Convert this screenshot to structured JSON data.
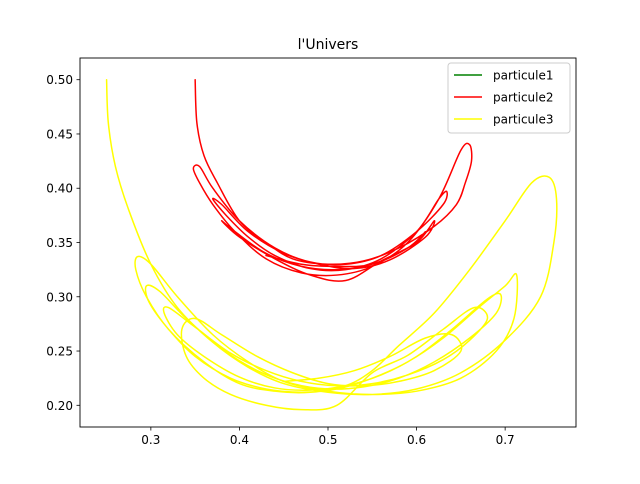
{
  "chart_data": {
    "type": "line",
    "title": "l'Univers",
    "xlabel": "",
    "ylabel": "",
    "xlim": [
      0.22,
      0.78
    ],
    "ylim": [
      0.18,
      0.52
    ],
    "xticks": [
      0.3,
      0.4,
      0.5,
      0.6,
      0.7
    ],
    "xtick_labels": [
      "0.3",
      "0.4",
      "0.5",
      "0.6",
      "0.7"
    ],
    "yticks": [
      0.2,
      0.25,
      0.3,
      0.35,
      0.4,
      0.45,
      0.5
    ],
    "ytick_labels": [
      "0.20",
      "0.25",
      "0.30",
      "0.35",
      "0.40",
      "0.45",
      "0.50"
    ],
    "grid": false,
    "legend_position": "top-right",
    "series": [
      {
        "name": "particule1",
        "color": "#008000",
        "x": [],
        "y": []
      },
      {
        "name": "particule2",
        "color": "#ff0000",
        "x": [
          0.35,
          0.352,
          0.36,
          0.375,
          0.4,
          0.43,
          0.46,
          0.5,
          0.54,
          0.58,
          0.62,
          0.645,
          0.655,
          0.662,
          0.66,
          0.65,
          0.625,
          0.59,
          0.55,
          0.51,
          0.47,
          0.43,
          0.395,
          0.37,
          0.355,
          0.348,
          0.355,
          0.37,
          0.4,
          0.44,
          0.48,
          0.52,
          0.56,
          0.6,
          0.63,
          0.634,
          0.625,
          0.6,
          0.56,
          0.52,
          0.48,
          0.44,
          0.41,
          0.385,
          0.37,
          0.38,
          0.41,
          0.45,
          0.49,
          0.53,
          0.57,
          0.61,
          0.62,
          0.6,
          0.56,
          0.52,
          0.48,
          0.44,
          0.4,
          0.38,
          0.395,
          0.43,
          0.47,
          0.51,
          0.55,
          0.59,
          0.61,
          0.59,
          0.55,
          0.51,
          0.47,
          0.43
        ],
        "y": [
          0.5,
          0.46,
          0.43,
          0.405,
          0.37,
          0.35,
          0.335,
          0.33,
          0.333,
          0.345,
          0.365,
          0.385,
          0.405,
          0.425,
          0.44,
          0.435,
          0.39,
          0.35,
          0.328,
          0.32,
          0.322,
          0.335,
          0.36,
          0.385,
          0.405,
          0.418,
          0.42,
          0.4,
          0.37,
          0.345,
          0.332,
          0.33,
          0.338,
          0.36,
          0.385,
          0.397,
          0.39,
          0.36,
          0.335,
          0.325,
          0.326,
          0.338,
          0.355,
          0.375,
          0.39,
          0.385,
          0.36,
          0.34,
          0.33,
          0.326,
          0.334,
          0.355,
          0.37,
          0.35,
          0.333,
          0.315,
          0.32,
          0.335,
          0.355,
          0.37,
          0.36,
          0.34,
          0.328,
          0.325,
          0.33,
          0.345,
          0.36,
          0.345,
          0.33,
          0.328,
          0.33,
          0.338
        ]
      },
      {
        "name": "particule3",
        "color": "#ffff00",
        "x": [
          0.25,
          0.252,
          0.26,
          0.275,
          0.3,
          0.33,
          0.37,
          0.41,
          0.45,
          0.5,
          0.55,
          0.6,
          0.65,
          0.7,
          0.74,
          0.755,
          0.758,
          0.75,
          0.73,
          0.7,
          0.66,
          0.62,
          0.58,
          0.55,
          0.52,
          0.48,
          0.44,
          0.4,
          0.36,
          0.32,
          0.295,
          0.283,
          0.285,
          0.3,
          0.33,
          0.37,
          0.41,
          0.45,
          0.5,
          0.55,
          0.6,
          0.65,
          0.69,
          0.71,
          0.713,
          0.7,
          0.67,
          0.63,
          0.59,
          0.55,
          0.51,
          0.47,
          0.43,
          0.39,
          0.35,
          0.32,
          0.298,
          0.295,
          0.31,
          0.34,
          0.38,
          0.42,
          0.46,
          0.5,
          0.54,
          0.58,
          0.62,
          0.66,
          0.69,
          0.695,
          0.68,
          0.64,
          0.6,
          0.56,
          0.52,
          0.48,
          0.44,
          0.4,
          0.36,
          0.33,
          0.315,
          0.32,
          0.35,
          0.39,
          0.43,
          0.47,
          0.51,
          0.55,
          0.59,
          0.63,
          0.66,
          0.68,
          0.665,
          0.63,
          0.59,
          0.55,
          0.51,
          0.47,
          0.43,
          0.39,
          0.36,
          0.34,
          0.335,
          0.35,
          0.38,
          0.42,
          0.46,
          0.5,
          0.54,
          0.58,
          0.62,
          0.65,
          0.64,
          0.61,
          0.57,
          0.53,
          0.49,
          0.45
        ],
        "y": [
          0.5,
          0.46,
          0.42,
          0.38,
          0.33,
          0.29,
          0.258,
          0.235,
          0.22,
          0.212,
          0.21,
          0.215,
          0.23,
          0.26,
          0.3,
          0.35,
          0.39,
          0.41,
          0.405,
          0.37,
          0.325,
          0.285,
          0.255,
          0.232,
          0.218,
          0.212,
          0.213,
          0.22,
          0.24,
          0.27,
          0.3,
          0.325,
          0.337,
          0.33,
          0.3,
          0.265,
          0.24,
          0.222,
          0.213,
          0.21,
          0.213,
          0.225,
          0.25,
          0.28,
          0.32,
          0.31,
          0.29,
          0.262,
          0.24,
          0.225,
          0.215,
          0.212,
          0.215,
          0.225,
          0.245,
          0.27,
          0.295,
          0.31,
          0.305,
          0.28,
          0.252,
          0.232,
          0.22,
          0.215,
          0.217,
          0.225,
          0.24,
          0.262,
          0.285,
          0.302,
          0.298,
          0.27,
          0.245,
          0.228,
          0.218,
          0.214,
          0.216,
          0.226,
          0.245,
          0.265,
          0.285,
          0.29,
          0.272,
          0.248,
          0.232,
          0.222,
          0.218,
          0.22,
          0.228,
          0.242,
          0.26,
          0.28,
          0.29,
          0.27,
          0.246,
          0.23,
          0.2,
          0.196,
          0.2,
          0.21,
          0.225,
          0.245,
          0.27,
          0.28,
          0.265,
          0.245,
          0.23,
          0.22,
          0.218,
          0.222,
          0.232,
          0.25,
          0.265,
          0.262,
          0.245,
          0.232,
          0.225,
          0.222
        ]
      }
    ]
  }
}
